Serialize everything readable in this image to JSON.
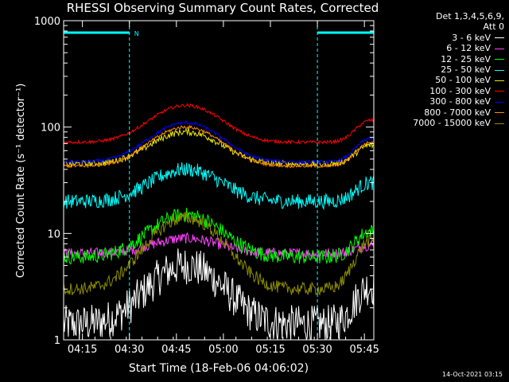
{
  "chart_data": {
    "type": "line",
    "title": "RHESSI Observing Summary Count Rates, Corrected",
    "xlabel": "Start Time (18-Feb-06 04:06:02)",
    "ylabel": "Corrected Count Rate (s⁻¹ detector⁻¹)",
    "yscale": "log",
    "ylim": [
      1,
      1000
    ],
    "xlim_minutes_after_0406": [
      3,
      102
    ],
    "x_tick_labels": [
      "04:15",
      "04:30",
      "04:45",
      "05:00",
      "05:15",
      "05:30",
      "05:45"
    ],
    "x_tick_minutes": [
      9,
      24,
      39,
      54,
      69,
      84,
      99
    ],
    "y_tick_labels": [
      "1",
      "10",
      "100",
      "1000"
    ],
    "y_ticks": [
      1,
      10,
      100,
      1000
    ],
    "legend_header": [
      "Det 1,3,4,5,6,9,",
      "Att 0"
    ],
    "timestamp": "14-Oct-2021 03:15",
    "flag_label": "N",
    "flag_bars_minutes": [
      [
        3,
        24
      ],
      [
        84,
        102
      ]
    ],
    "vlines_minutes": [
      24,
      84
    ],
    "orbit_peak_minute": 42,
    "series": [
      {
        "name": "3 - 6 keV",
        "color": "#ffffff",
        "base": 1.4,
        "peak": 5.0,
        "noise": 0.18
      },
      {
        "name": "6 - 12 keV",
        "color": "#ff40ff",
        "base": 6.5,
        "peak": 9.0,
        "noise": 0.05
      },
      {
        "name": "12 - 25 keV",
        "color": "#00ff00",
        "base": 6.0,
        "peak": 15.0,
        "noise": 0.07
      },
      {
        "name": "25 - 50 keV",
        "color": "#00ffff",
        "base": 20.0,
        "peak": 40.0,
        "noise": 0.07
      },
      {
        "name": "50 - 100 keV",
        "color": "#e6e600",
        "base": 45.0,
        "peak": 90.0,
        "noise": 0.03
      },
      {
        "name": "100 - 300 keV",
        "color": "#ff0000",
        "base": 72.0,
        "peak": 160.0,
        "noise": 0.015
      },
      {
        "name": "300 - 800 keV",
        "color": "#0000ff",
        "base": 47.0,
        "peak": 110.0,
        "noise": 0.015
      },
      {
        "name": "800 - 7000 keV",
        "color": "#ff8c00",
        "base": 43.0,
        "peak": 100.0,
        "noise": 0.015
      },
      {
        "name": "7000 - 15000 keV",
        "color": "#8b8b00",
        "base": 3.0,
        "peak": 14.0,
        "noise": 0.06
      }
    ]
  }
}
